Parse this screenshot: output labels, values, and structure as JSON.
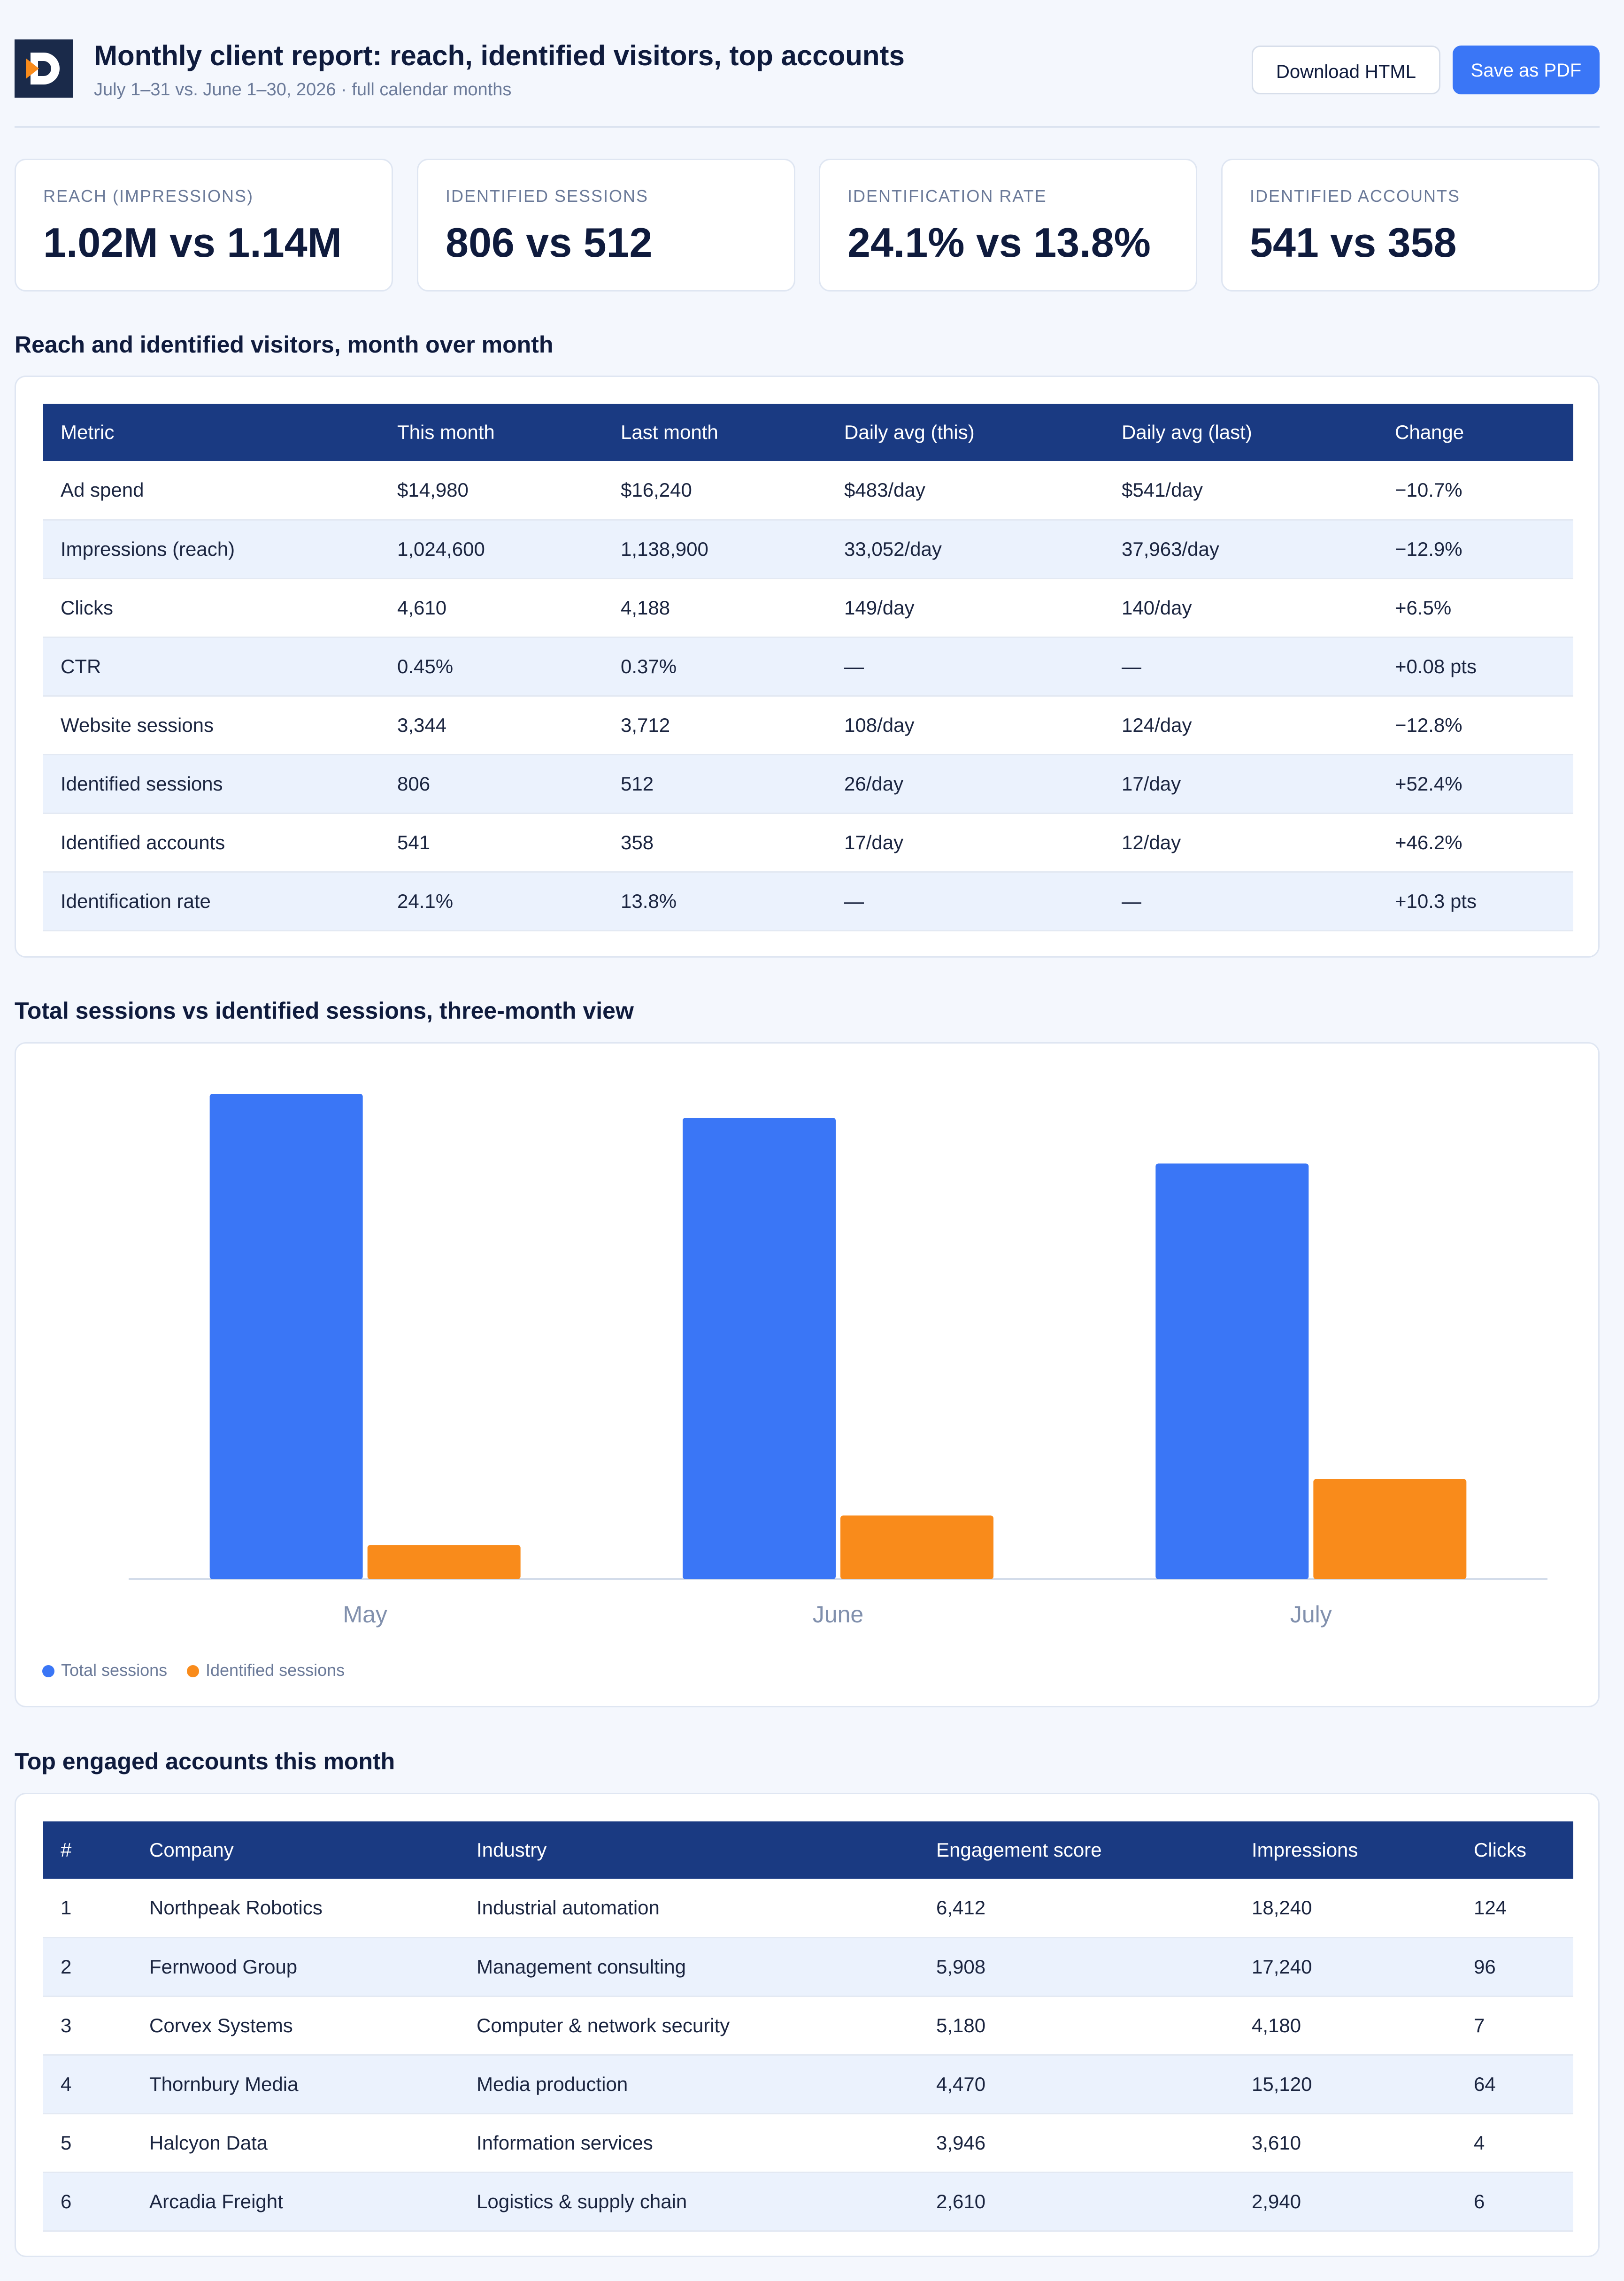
{
  "header": {
    "title": "Monthly client report: reach, identified visitors, top accounts",
    "subtitle": "July 1–31 vs. June 1–30, 2026 · full calendar months",
    "download_label": "Download HTML",
    "pdf_label": "Save as PDF",
    "colors": {
      "primary": "#3a76f6",
      "navy": "#1a3a82"
    }
  },
  "kpis": [
    {
      "label": "REACH (IMPRESSIONS)",
      "value": "1.02M vs 1.14M"
    },
    {
      "label": "IDENTIFIED SESSIONS",
      "value": "806 vs 512"
    },
    {
      "label": "IDENTIFICATION RATE",
      "value": "24.1% vs 13.8%"
    },
    {
      "label": "IDENTIFIED ACCOUNTS",
      "value": "541 vs 358"
    }
  ],
  "reach_section": {
    "title": "Reach and identified visitors, month over month",
    "headers": [
      "Metric",
      "This month",
      "Last month",
      "Daily avg (this)",
      "Daily avg (last)",
      "Change"
    ],
    "rows": [
      [
        "Ad spend",
        "$14,980",
        "$16,240",
        "$483/day",
        "$541/day",
        "−10.7%"
      ],
      [
        "Impressions (reach)",
        "1,024,600",
        "1,138,900",
        "33,052/day",
        "37,963/day",
        "−12.9%"
      ],
      [
        "Clicks",
        "4,610",
        "4,188",
        "149/day",
        "140/day",
        "+6.5%"
      ],
      [
        "CTR",
        "0.45%",
        "0.37%",
        "—",
        "—",
        "+0.08 pts"
      ],
      [
        "Website sessions",
        "3,344",
        "3,712",
        "108/day",
        "124/day",
        "−12.8%"
      ],
      [
        "Identified sessions",
        "806",
        "512",
        "26/day",
        "17/day",
        "+52.4%"
      ],
      [
        "Identified accounts",
        "541",
        "358",
        "17/day",
        "12/day",
        "+46.2%"
      ],
      [
        "Identification rate",
        "24.1%",
        "13.8%",
        "—",
        "—",
        "+10.3 pts"
      ]
    ]
  },
  "chart_section": {
    "title": "Total sessions vs identified sessions, three-month view"
  },
  "chart_data": {
    "type": "bar",
    "title": "",
    "xlabel": "",
    "ylabel": "",
    "categories": [
      "May",
      "June",
      "July"
    ],
    "series": [
      {
        "name": "Total sessions",
        "values": [
          3905,
          3712,
          3344
        ],
        "color": "#3a76f6"
      },
      {
        "name": "Identified sessions",
        "values": [
          275,
          512,
          806
        ],
        "color": "#f98b1b"
      }
    ],
    "ylim": [
      0,
      3905
    ],
    "grid": false,
    "legend": "bottom-left"
  },
  "accounts_section": {
    "title": "Top engaged accounts this month",
    "headers": [
      "#",
      "Company",
      "Industry",
      "Engagement score",
      "Impressions",
      "Clicks"
    ],
    "rows": [
      [
        "1",
        "Northpeak Robotics",
        "Industrial automation",
        "6,412",
        "18,240",
        "124"
      ],
      [
        "2",
        "Fernwood Group",
        "Management consulting",
        "5,908",
        "17,240",
        "96"
      ],
      [
        "3",
        "Corvex Systems",
        "Computer & network security",
        "5,180",
        "4,180",
        "7"
      ],
      [
        "4",
        "Thornbury Media",
        "Media production",
        "4,470",
        "15,120",
        "64"
      ],
      [
        "5",
        "Halcyon Data",
        "Information services",
        "3,946",
        "3,610",
        "4"
      ],
      [
        "6",
        "Arcadia Freight",
        "Logistics & supply chain",
        "2,610",
        "2,940",
        "6"
      ]
    ]
  }
}
